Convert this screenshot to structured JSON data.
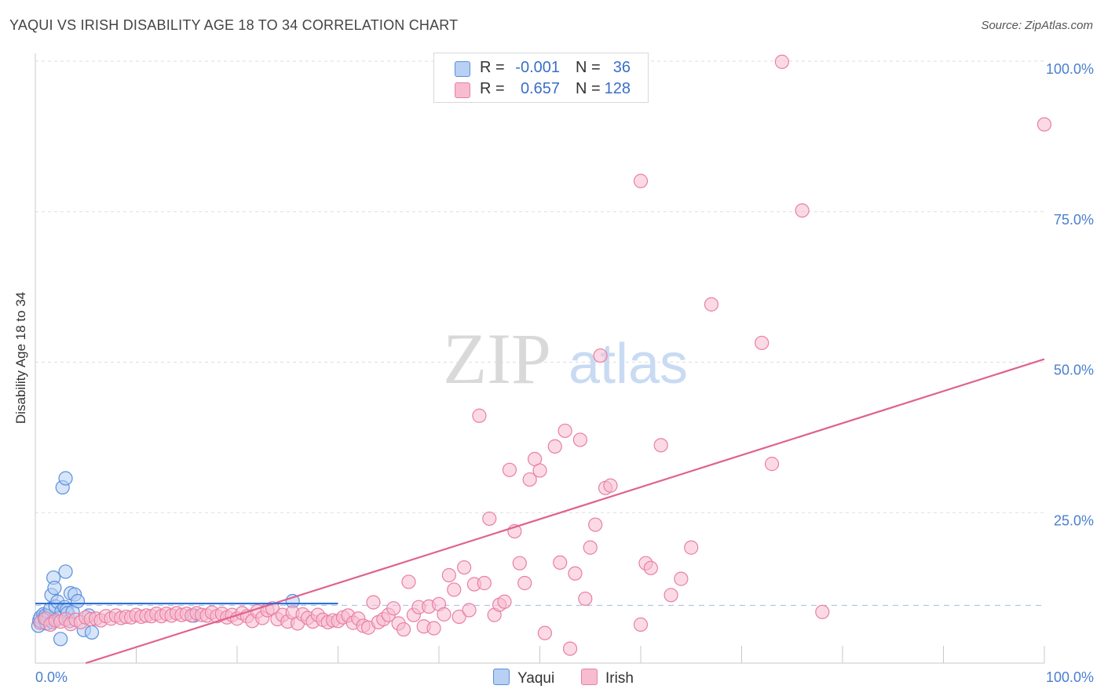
{
  "title": "YAQUI VS IRISH DISABILITY AGE 18 TO 34 CORRELATION CHART",
  "source": "Source: ZipAtlas.com",
  "watermark": {
    "zip": "ZIP",
    "atlas": "atlas"
  },
  "legend": {
    "yaqui": {
      "r_label": "R =",
      "r_value": "-0.001",
      "n_label": "N =",
      "n_value": "36"
    },
    "irish": {
      "r_label": "R =",
      "r_value": "0.657",
      "n_label": "N =",
      "n_value": "128"
    }
  },
  "bottom_legend": {
    "yaqui": "Yaqui",
    "irish": "Irish"
  },
  "colors": {
    "yaqui_fill": "#b7d0f3",
    "yaqui_stroke": "#5b8fde",
    "yaqui_line": "#2f6fd6",
    "irish_fill": "#f7bcd0",
    "irish_stroke": "#e97fa3",
    "irish_line": "#e0628f",
    "grid": "#dddddd",
    "tick_text": "#4a7fd0"
  },
  "chart_data": {
    "type": "scatter",
    "title": "YAQUI VS IRISH DISABILITY AGE 18 TO 34 CORRELATION CHART",
    "xlabel": "",
    "ylabel": "Disability Age 18 to 34",
    "xlim": [
      0,
      100
    ],
    "ylim": [
      0,
      100
    ],
    "x_tick_labels": [
      "0.0%",
      "100.0%"
    ],
    "y_ticks": [
      25,
      50,
      75,
      100
    ],
    "y_tick_labels": [
      "25.0%",
      "50.0%",
      "75.0%",
      "100.0%"
    ],
    "reference_line_y": 9.6,
    "series": [
      {
        "name": "Yaqui",
        "points": [
          [
            0.3,
            6.2
          ],
          [
            0.4,
            7.1
          ],
          [
            0.5,
            7.6
          ],
          [
            0.6,
            6.9
          ],
          [
            0.8,
            8.1
          ],
          [
            0.9,
            7.4
          ],
          [
            1.0,
            7.9
          ],
          [
            1.1,
            6.6
          ],
          [
            1.2,
            7.2
          ],
          [
            1.3,
            7.8
          ],
          [
            1.5,
            9.0
          ],
          [
            1.6,
            11.3
          ],
          [
            1.7,
            6.8
          ],
          [
            1.8,
            14.2
          ],
          [
            1.9,
            12.5
          ],
          [
            2.0,
            9.4
          ],
          [
            2.2,
            10.2
          ],
          [
            2.4,
            7.5
          ],
          [
            2.5,
            4.0
          ],
          [
            2.6,
            8.6
          ],
          [
            2.7,
            29.2
          ],
          [
            2.9,
            9.3
          ],
          [
            3.0,
            30.7
          ],
          [
            3.0,
            15.2
          ],
          [
            3.1,
            8.8
          ],
          [
            3.2,
            8.3
          ],
          [
            3.4,
            7.0
          ],
          [
            3.5,
            11.6
          ],
          [
            3.7,
            8.5
          ],
          [
            3.9,
            11.4
          ],
          [
            4.2,
            10.3
          ],
          [
            4.8,
            5.5
          ],
          [
            5.3,
            7.9
          ],
          [
            5.6,
            5.1
          ],
          [
            15.7,
            7.9
          ],
          [
            25.5,
            10.3
          ]
        ],
        "trend": {
          "x": [
            0,
            30
          ],
          "y": [
            9.9,
            9.9
          ]
        }
      },
      {
        "name": "Irish",
        "points": [
          [
            0.5,
            6.7
          ],
          [
            1.0,
            7.4
          ],
          [
            1.5,
            6.4
          ],
          [
            2.0,
            7.1
          ],
          [
            2.5,
            6.9
          ],
          [
            3.0,
            7.3
          ],
          [
            3.5,
            6.5
          ],
          [
            4.0,
            7.2
          ],
          [
            4.5,
            6.8
          ],
          [
            5.0,
            7.6
          ],
          [
            5.5,
            7.3
          ],
          [
            6.0,
            7.4
          ],
          [
            6.5,
            7.1
          ],
          [
            7.0,
            7.8
          ],
          [
            7.5,
            7.4
          ],
          [
            8.0,
            7.9
          ],
          [
            8.5,
            7.5
          ],
          [
            9.0,
            7.7
          ],
          [
            9.5,
            7.6
          ],
          [
            10.0,
            8.0
          ],
          [
            10.5,
            7.7
          ],
          [
            11.0,
            7.9
          ],
          [
            11.5,
            7.8
          ],
          [
            12.0,
            8.2
          ],
          [
            12.5,
            7.8
          ],
          [
            13.0,
            8.2
          ],
          [
            13.5,
            7.9
          ],
          [
            14.0,
            8.3
          ],
          [
            14.5,
            8.0
          ],
          [
            15.0,
            8.2
          ],
          [
            15.5,
            7.9
          ],
          [
            16.0,
            8.3
          ],
          [
            16.5,
            8.0
          ],
          [
            17.0,
            7.9
          ],
          [
            17.5,
            8.4
          ],
          [
            18.0,
            7.8
          ],
          [
            18.5,
            8.2
          ],
          [
            19.0,
            7.6
          ],
          [
            19.5,
            8.0
          ],
          [
            20.0,
            7.4
          ],
          [
            20.5,
            8.3
          ],
          [
            21.0,
            7.8
          ],
          [
            21.5,
            7.0
          ],
          [
            22.0,
            8.6
          ],
          [
            22.5,
            7.5
          ],
          [
            23.0,
            8.8
          ],
          [
            23.5,
            9.1
          ],
          [
            24.0,
            7.3
          ],
          [
            24.5,
            8.0
          ],
          [
            25.0,
            6.9
          ],
          [
            25.5,
            8.4
          ],
          [
            26.0,
            6.6
          ],
          [
            26.5,
            8.1
          ],
          [
            27.0,
            7.5
          ],
          [
            27.5,
            6.9
          ],
          [
            28.0,
            8.0
          ],
          [
            28.5,
            7.2
          ],
          [
            29.0,
            6.8
          ],
          [
            29.5,
            7.1
          ],
          [
            30.0,
            7.0
          ],
          [
            30.5,
            7.6
          ],
          [
            31.0,
            7.9
          ],
          [
            31.5,
            6.7
          ],
          [
            32.0,
            7.4
          ],
          [
            32.5,
            6.2
          ],
          [
            33.0,
            5.9
          ],
          [
            33.5,
            10.1
          ],
          [
            34.0,
            6.8
          ],
          [
            34.5,
            7.3
          ],
          [
            35.0,
            8.0
          ],
          [
            35.5,
            9.1
          ],
          [
            36.0,
            6.6
          ],
          [
            36.5,
            5.6
          ],
          [
            37.0,
            13.5
          ],
          [
            37.5,
            8.0
          ],
          [
            38.0,
            9.3
          ],
          [
            38.5,
            6.1
          ],
          [
            39.0,
            9.4
          ],
          [
            39.5,
            5.8
          ],
          [
            40.0,
            9.8
          ],
          [
            40.5,
            8.1
          ],
          [
            41.0,
            14.6
          ],
          [
            41.5,
            12.2
          ],
          [
            42.0,
            7.7
          ],
          [
            42.5,
            15.9
          ],
          [
            43.0,
            8.8
          ],
          [
            43.5,
            13.1
          ],
          [
            44.0,
            41.1
          ],
          [
            44.5,
            13.3
          ],
          [
            45.0,
            24.0
          ],
          [
            45.5,
            8.0
          ],
          [
            46.0,
            9.7
          ],
          [
            46.5,
            10.2
          ],
          [
            47.0,
            32.1
          ],
          [
            47.5,
            21.9
          ],
          [
            48.0,
            16.6
          ],
          [
            48.5,
            13.3
          ],
          [
            49.0,
            30.5
          ],
          [
            49.5,
            33.9
          ],
          [
            50.0,
            32.0
          ],
          [
            50.5,
            5.0
          ],
          [
            51.5,
            36.0
          ],
          [
            52.0,
            16.7
          ],
          [
            52.5,
            38.6
          ],
          [
            53.0,
            2.4
          ],
          [
            53.5,
            14.9
          ],
          [
            54.0,
            37.1
          ],
          [
            54.5,
            10.7
          ],
          [
            55.0,
            19.2
          ],
          [
            55.5,
            23.0
          ],
          [
            56.0,
            51.1
          ],
          [
            56.5,
            29.1
          ],
          [
            57.0,
            29.5
          ],
          [
            60.0,
            80.1
          ],
          [
            60.5,
            16.6
          ],
          [
            61.0,
            15.8
          ],
          [
            62.0,
            36.2
          ],
          [
            63.0,
            11.3
          ],
          [
            64.0,
            14.0
          ],
          [
            65.0,
            19.2
          ],
          [
            67.0,
            59.6
          ],
          [
            72.0,
            53.2
          ],
          [
            73.0,
            33.1
          ],
          [
            74.0,
            99.9
          ],
          [
            76.0,
            75.2
          ],
          [
            78.0,
            8.5
          ],
          [
            100.0,
            89.5
          ],
          [
            60.0,
            6.4
          ]
        ],
        "trend": {
          "x": [
            5,
            100
          ],
          "y": [
            0,
            50.5
          ]
        }
      }
    ]
  }
}
